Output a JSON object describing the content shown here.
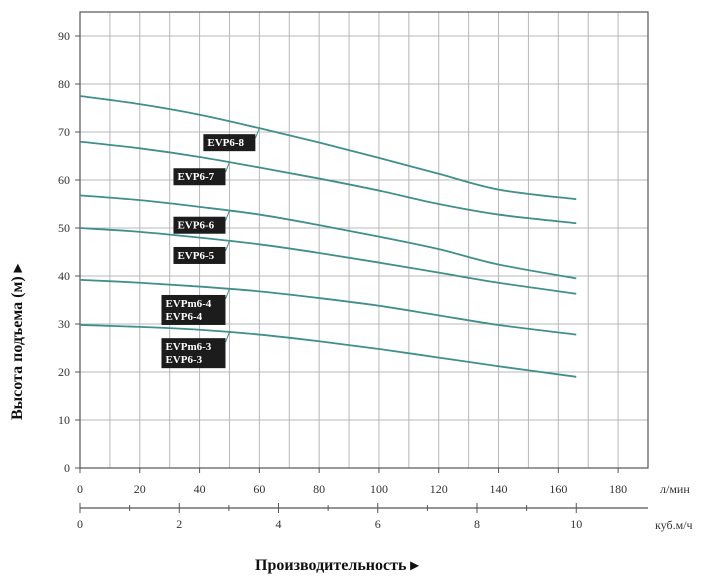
{
  "chart_data": {
    "type": "line",
    "ylabel": "Высота подъема (м) ▸",
    "xlabel": "Производительность ▸",
    "x_unit_primary": "л/мин",
    "x_unit_secondary": "куб.м/ч",
    "xlim": [
      0,
      190
    ],
    "ylim": [
      0,
      95
    ],
    "x_ticks_primary": [
      0,
      20,
      40,
      60,
      80,
      100,
      120,
      140,
      160,
      180
    ],
    "x_ticks_secondary": [
      0,
      2,
      4,
      6,
      8,
      10
    ],
    "secondary_scale_max": 10,
    "primary_at_secondary_max": 166,
    "y_ticks": [
      0,
      10,
      20,
      30,
      40,
      50,
      60,
      70,
      80,
      90
    ],
    "grid": true,
    "curve_color": "#3f8f8c",
    "series": [
      {
        "name": "EVP6-8",
        "x": [
          0,
          20,
          40,
          60,
          80,
          100,
          120,
          140,
          166
        ],
        "y": [
          77.5,
          75.8,
          73.6,
          70.8,
          67.8,
          64.6,
          61.3,
          58.0,
          56.0
        ],
        "label_lines": [
          "EVP6-8"
        ],
        "label_anchor_x": 60
      },
      {
        "name": "EVP6-7",
        "x": [
          0,
          20,
          40,
          60,
          80,
          100,
          120,
          140,
          166
        ],
        "y": [
          68.0,
          66.6,
          64.8,
          62.6,
          60.3,
          57.8,
          55.0,
          52.8,
          51.0
        ],
        "label_lines": [
          "EVP6-7"
        ],
        "label_anchor_x": 50
      },
      {
        "name": "EVP6-6",
        "x": [
          0,
          20,
          40,
          60,
          80,
          100,
          120,
          140,
          166
        ],
        "y": [
          56.8,
          55.8,
          54.4,
          52.8,
          50.6,
          48.2,
          45.6,
          42.4,
          39.5
        ],
        "label_lines": [
          "EVP6-6"
        ],
        "label_anchor_x": 50
      },
      {
        "name": "EVP6-5",
        "x": [
          0,
          20,
          40,
          60,
          80,
          100,
          120,
          140,
          166
        ],
        "y": [
          50.0,
          49.2,
          48.0,
          46.6,
          44.8,
          42.8,
          40.7,
          38.6,
          36.3
        ],
        "label_lines": [
          "EVP6-5"
        ],
        "label_anchor_x": 50
      },
      {
        "name": "EVPm6-4 / EVP6-4",
        "x": [
          0,
          20,
          40,
          60,
          80,
          100,
          120,
          140,
          166
        ],
        "y": [
          39.2,
          38.6,
          37.8,
          36.8,
          35.4,
          33.8,
          31.8,
          29.8,
          27.8
        ],
        "label_lines": [
          "EVPm6-4",
          "EVP6-4"
        ],
        "label_anchor_x": 50
      },
      {
        "name": "EVPm6-3 / EVP6-3",
        "x": [
          0,
          20,
          40,
          60,
          80,
          100,
          120,
          140,
          166
        ],
        "y": [
          29.8,
          29.4,
          28.8,
          27.8,
          26.4,
          24.8,
          23.0,
          21.2,
          19.0
        ],
        "label_lines": [
          "EVPm6-3",
          "EVP6-3"
        ],
        "label_anchor_x": 50
      }
    ]
  }
}
